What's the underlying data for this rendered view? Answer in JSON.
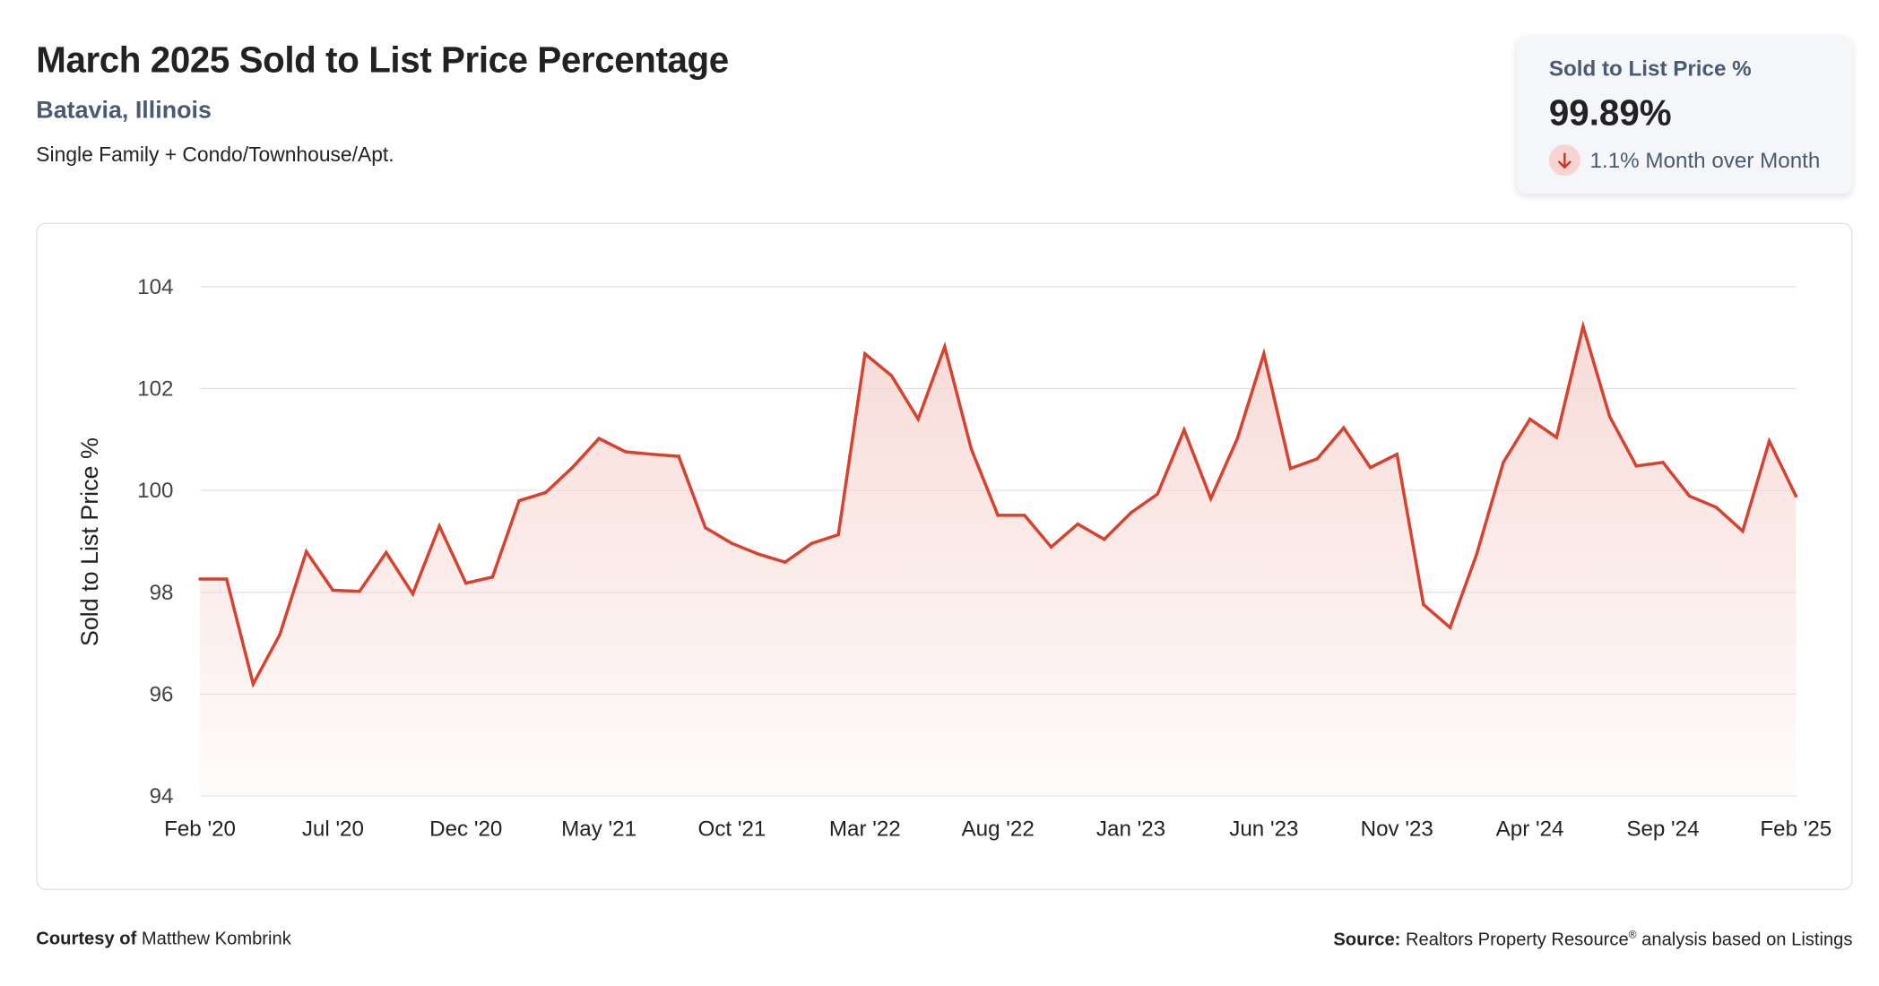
{
  "header": {
    "title": "March 2025 Sold to List Price Percentage",
    "location": "Batavia, Illinois",
    "property_types": "Single Family + Condo/Townhouse/Apt."
  },
  "kpi": {
    "label": "Sold to List Price %",
    "value": "99.89%",
    "change": "1.1% Month over Month",
    "direction_icon": "arrow-down-icon"
  },
  "footer": {
    "courtesy_label": "Courtesy of",
    "courtesy_name": "Matthew Kombrink",
    "source_label": "Source:",
    "source_text": "Realtors Property Resource",
    "source_mark": "®",
    "source_suffix": " analysis based on Listings"
  },
  "colors": {
    "line": "#d9412e",
    "fill": "#f6d5d0",
    "grid": "#e3e3e3",
    "accent": "#4a5a72"
  },
  "chart_data": {
    "type": "area",
    "title": "March 2025 Sold to List Price Percentage",
    "xlabel": "",
    "ylabel": "Sold to List Price %",
    "ylim": [
      94,
      104
    ],
    "yticks": [
      94,
      96,
      98,
      100,
      102,
      104
    ],
    "grid": true,
    "x_tick_labels": [
      "Feb '20",
      "Jul '20",
      "Dec '20",
      "May '21",
      "Oct '21",
      "Mar '22",
      "Aug '22",
      "Jan '23",
      "Jun '23",
      "Nov '23",
      "Apr '24",
      "Sep '24",
      "Feb '25"
    ],
    "x_tick_every": 5,
    "start_month": "Feb 2020",
    "end_month": "Feb 2025",
    "series": [
      {
        "name": "Sold to List Price %",
        "values": [
          98.26,
          98.26,
          96.2,
          97.17,
          98.8,
          98.04,
          98.02,
          98.78,
          97.97,
          99.3,
          98.18,
          98.3,
          99.8,
          99.96,
          100.45,
          101.02,
          100.76,
          100.71,
          100.67,
          99.27,
          98.96,
          98.75,
          98.59,
          98.96,
          99.13,
          102.68,
          102.25,
          101.4,
          102.82,
          100.81,
          99.51,
          99.51,
          98.89,
          99.34,
          99.04,
          99.56,
          99.93,
          101.19,
          99.84,
          101.02,
          102.68,
          100.43,
          100.62,
          101.23,
          100.45,
          100.71,
          97.76,
          97.31,
          98.75,
          100.55,
          101.4,
          101.04,
          103.22,
          101.45,
          100.48,
          100.55,
          99.89,
          99.67,
          99.2,
          100.97,
          99.89
        ]
      }
    ]
  }
}
